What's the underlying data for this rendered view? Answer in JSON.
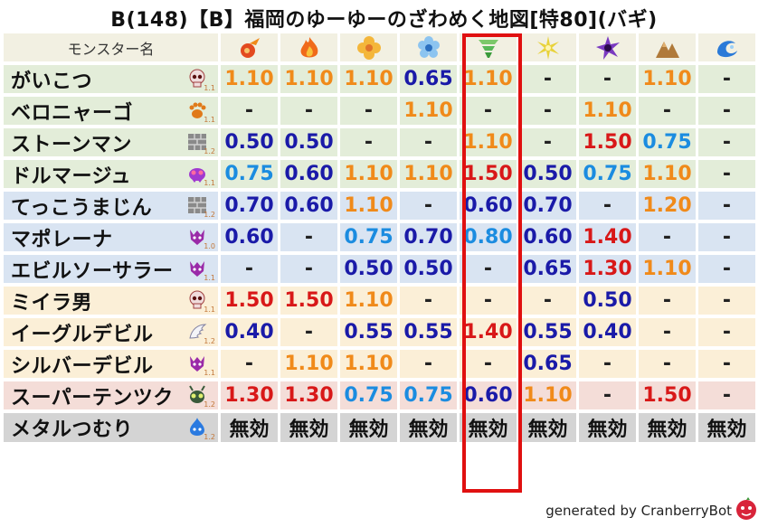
{
  "title": "B(148)【B】福岡のゆーゆーのざわめく地図[特80](バギ)",
  "header": {
    "name_label": "モンスター名"
  },
  "elements": [
    {
      "icon": "mera-fire-icon",
      "color": "#e34a1f"
    },
    {
      "icon": "gira-flame-icon",
      "color": "#f06a1a"
    },
    {
      "icon": "io-explosion-icon",
      "color": "#f4b63a"
    },
    {
      "icon": "hyado-ice-icon",
      "color": "#4a9de0"
    },
    {
      "icon": "bagi-wind-icon",
      "color": "#58b858"
    },
    {
      "icon": "dein-light-icon",
      "color": "#e8d23a"
    },
    {
      "icon": "doruma-dark-icon",
      "color": "#7a3ac0"
    },
    {
      "icon": "jibaria-earth-icon",
      "color": "#b07a3a"
    },
    {
      "icon": "water-wave-icon",
      "color": "#2a7ad8"
    }
  ],
  "monsters": [
    {
      "name": "がいこつ",
      "icon": "skull-icon",
      "version": "1.1",
      "row_color": "g",
      "values": [
        "1.10",
        "1.10",
        "1.10",
        "0.65",
        "1.10",
        "-",
        "-",
        "1.10",
        "-"
      ]
    },
    {
      "name": "ベロニャーゴ",
      "icon": "paw-icon",
      "version": "1.1",
      "row_color": "g",
      "values": [
        "-",
        "-",
        "-",
        "1.10",
        "-",
        "-",
        "1.10",
        "-",
        "-"
      ]
    },
    {
      "name": "ストーンマン",
      "icon": "brick-icon",
      "version": "1.2",
      "row_color": "g",
      "values": [
        "0.50",
        "0.50",
        "-",
        "-",
        "1.10",
        "-",
        "1.50",
        "0.75",
        "-"
      ]
    },
    {
      "name": "ドルマージュ",
      "icon": "purple-monster-icon",
      "version": "1.1",
      "row_color": "g",
      "values": [
        "0.75",
        "0.60",
        "1.10",
        "1.10",
        "1.50",
        "0.50",
        "0.75",
        "1.10",
        "-"
      ]
    },
    {
      "name": "てっこうまじん",
      "icon": "brick-icon",
      "version": "1.2",
      "row_color": "b",
      "values": [
        "0.70",
        "0.60",
        "1.10",
        "-",
        "0.60",
        "0.70",
        "-",
        "1.20",
        "-"
      ]
    },
    {
      "name": "マポレーナ",
      "icon": "demon-icon",
      "version": "1.0",
      "row_color": "b",
      "values": [
        "0.60",
        "-",
        "0.75",
        "0.70",
        "0.80",
        "0.60",
        "1.40",
        "-",
        "-"
      ]
    },
    {
      "name": "エビルソーサラー",
      "icon": "demon-icon",
      "version": "1.1",
      "row_color": "b",
      "values": [
        "-",
        "-",
        "0.50",
        "0.50",
        "-",
        "0.65",
        "1.30",
        "1.10",
        "-"
      ]
    },
    {
      "name": "ミイラ男",
      "icon": "skull-icon",
      "version": "1.1",
      "row_color": "y",
      "values": [
        "1.50",
        "1.50",
        "1.10",
        "-",
        "-",
        "-",
        "0.50",
        "-",
        "-"
      ]
    },
    {
      "name": "イーグルデビル",
      "icon": "wing-icon",
      "version": "1.2",
      "row_color": "y",
      "values": [
        "0.40",
        "-",
        "0.55",
        "0.55",
        "1.40",
        "0.55",
        "0.40",
        "-",
        "-"
      ]
    },
    {
      "name": "シルバーデビル",
      "icon": "demon-icon",
      "version": "1.1",
      "row_color": "y",
      "values": [
        "-",
        "1.10",
        "1.10",
        "-",
        "-",
        "0.65",
        "-",
        "-",
        "-"
      ]
    },
    {
      "name": "スーパーテンツク",
      "icon": "insect-icon",
      "version": "1.2",
      "row_color": "p",
      "values": [
        "1.30",
        "1.30",
        "0.75",
        "0.75",
        "0.60",
        "1.10",
        "-",
        "1.50",
        "-"
      ]
    },
    {
      "name": "メタルつむり",
      "icon": "slime-icon",
      "version": "1.2",
      "row_color": "gr",
      "values": [
        "無効",
        "無効",
        "無効",
        "無効",
        "無効",
        "無効",
        "無効",
        "無効",
        "無効"
      ]
    }
  ],
  "value_colors": {
    "high": "#f08a1a",
    "very_high": "#d81818",
    "low": "#1a1aa8",
    "mid_low": "#1b8ce0"
  },
  "footer": {
    "text": "generated by CranberryBot"
  }
}
